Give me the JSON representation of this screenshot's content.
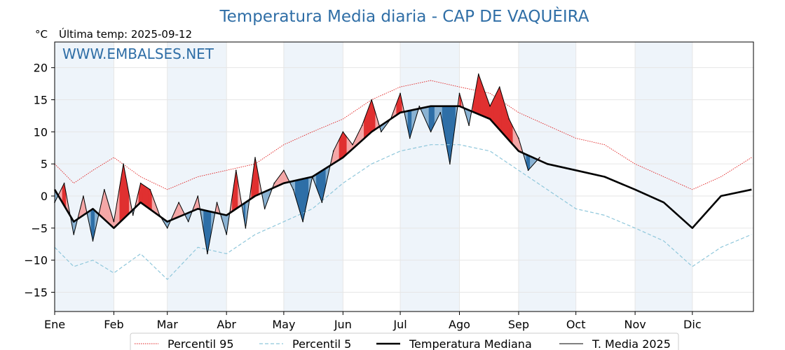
{
  "chart_data": {
    "type": "line",
    "title": "Temperatura Media diaria - CAP DE VAQUÈIRA",
    "unit_label": "°C",
    "subtitle": "Última temp: 2025-09-12",
    "watermark": "WWW.EMBALSES.NET",
    "ylim": [
      -18,
      24
    ],
    "yticks": [
      -15,
      -10,
      -5,
      0,
      5,
      10,
      15,
      20
    ],
    "ytick_labels": [
      "−15",
      "−10",
      "−5",
      "0",
      "5",
      "10",
      "15",
      "20"
    ],
    "x_days_in_year": 366,
    "months": [
      "Ene",
      "Feb",
      "Mar",
      "Abr",
      "May",
      "Jun",
      "Jul",
      "Ago",
      "Sep",
      "Oct",
      "Nov",
      "Dic"
    ],
    "month_start_days": [
      0,
      31,
      59,
      90,
      120,
      151,
      181,
      212,
      243,
      273,
      304,
      334
    ],
    "grid": true,
    "legend_placement": "bottom",
    "colors": {
      "title": "#2f6ea6",
      "p95": "#e02020",
      "p5": "#8fc7db",
      "median": "#000000",
      "current": "#000000",
      "above_strong": "#e03030",
      "above_light": "#f4a7a7",
      "below_strong": "#2e6fa7",
      "below_light": "#8ab3d3",
      "band": "#eef4fa"
    },
    "series": [
      {
        "name": "Percentil 95",
        "style": "dotted",
        "x": [
          0,
          10,
          20,
          31,
          45,
          59,
          75,
          90,
          105,
          120,
          135,
          151,
          166,
          181,
          197,
          212,
          228,
          243,
          258,
          273,
          288,
          304,
          319,
          334,
          349,
          365
        ],
        "y": [
          5,
          2,
          4,
          6,
          3,
          1,
          3,
          4,
          5,
          8,
          10,
          12,
          15,
          17,
          18,
          17,
          16,
          13,
          11,
          9,
          8,
          5,
          3,
          1,
          3,
          6
        ]
      },
      {
        "name": "Percentil 5",
        "style": "dashed",
        "x": [
          0,
          10,
          20,
          31,
          45,
          59,
          75,
          90,
          105,
          120,
          135,
          151,
          166,
          181,
          197,
          212,
          228,
          243,
          258,
          273,
          288,
          304,
          319,
          334,
          349,
          365
        ],
        "y": [
          -8,
          -11,
          -10,
          -12,
          -9,
          -13,
          -8,
          -9,
          -6,
          -4,
          -2,
          2,
          5,
          7,
          8,
          8,
          7,
          4,
          1,
          -2,
          -3,
          -5,
          -7,
          -11,
          -8,
          -6
        ]
      },
      {
        "name": "Temperatura Mediana",
        "style": "thick",
        "x": [
          0,
          10,
          20,
          31,
          45,
          59,
          75,
          90,
          105,
          120,
          135,
          151,
          166,
          181,
          197,
          212,
          228,
          243,
          258,
          273,
          288,
          304,
          319,
          334,
          349,
          365
        ],
        "y": [
          1,
          -4,
          -2,
          -5,
          -1,
          -4,
          -2,
          -3,
          0,
          2,
          3,
          6,
          10,
          13,
          14,
          14,
          12,
          7,
          5,
          4,
          3,
          1,
          -1,
          -5,
          0,
          1
        ]
      },
      {
        "name": "T. Media 2025",
        "style": "thin",
        "x": [
          0,
          5,
          10,
          15,
          20,
          26,
          31,
          36,
          41,
          45,
          50,
          55,
          59,
          65,
          70,
          75,
          80,
          85,
          90,
          95,
          100,
          105,
          110,
          115,
          120,
          125,
          130,
          135,
          140,
          146,
          151,
          156,
          161,
          166,
          171,
          176,
          181,
          186,
          191,
          197,
          202,
          207,
          212,
          217,
          222,
          228,
          233,
          238,
          243,
          248,
          254
        ],
        "y": [
          -1,
          2,
          -6,
          0,
          -7,
          1,
          -4,
          5,
          -3,
          2,
          1,
          -3,
          -5,
          -1,
          -4,
          0,
          -9,
          -1,
          -6,
          4,
          -5,
          6,
          -2,
          2,
          4,
          1,
          -4,
          3,
          -1,
          7,
          10,
          8,
          11,
          15,
          10,
          12,
          16,
          9,
          14,
          10,
          13,
          5,
          16,
          11,
          19,
          14,
          17,
          12,
          9,
          4,
          6
        ]
      }
    ]
  },
  "legend": {
    "p95": "Percentil 95",
    "p5": "Percentil 5",
    "median": "Temperatura Mediana",
    "current": "T. Media 2025"
  }
}
